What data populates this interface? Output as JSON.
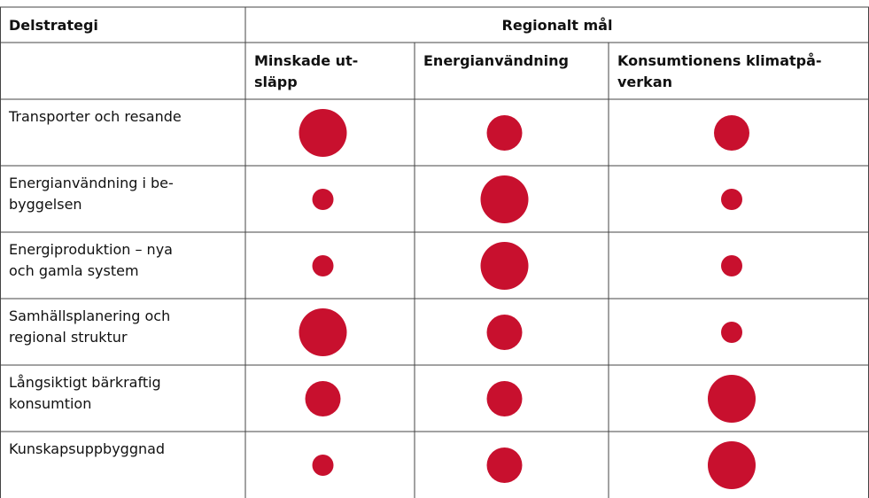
{
  "table": {
    "header": {
      "first": "Delstrategi",
      "group": "Regionalt mål"
    },
    "columns": [
      [
        "Minskade ut-",
        "släpp"
      ],
      [
        "Energianvändning"
      ],
      [
        "Konsumtionens klimatpå-",
        "verkan"
      ]
    ],
    "rows": [
      {
        "label": [
          "Transporter och resande"
        ],
        "levels": [
          3,
          2,
          2
        ]
      },
      {
        "label": [
          "Energianvändning i be-",
          "byggelsen"
        ],
        "levels": [
          1,
          3,
          1
        ]
      },
      {
        "label": [
          "Energiproduktion – nya",
          "och gamla system"
        ],
        "levels": [
          1,
          3,
          1
        ]
      },
      {
        "label": [
          "Samhällsplanering och",
          "regional struktur"
        ],
        "levels": [
          3,
          2,
          1
        ]
      },
      {
        "label": [
          "Långsiktigt bärkraftig",
          "konsumtion"
        ],
        "levels": [
          2,
          2,
          3
        ]
      },
      {
        "label": [
          "Kunskapsuppbyggnad"
        ],
        "levels": [
          1,
          2,
          3
        ]
      }
    ],
    "color": "#c8102e"
  }
}
